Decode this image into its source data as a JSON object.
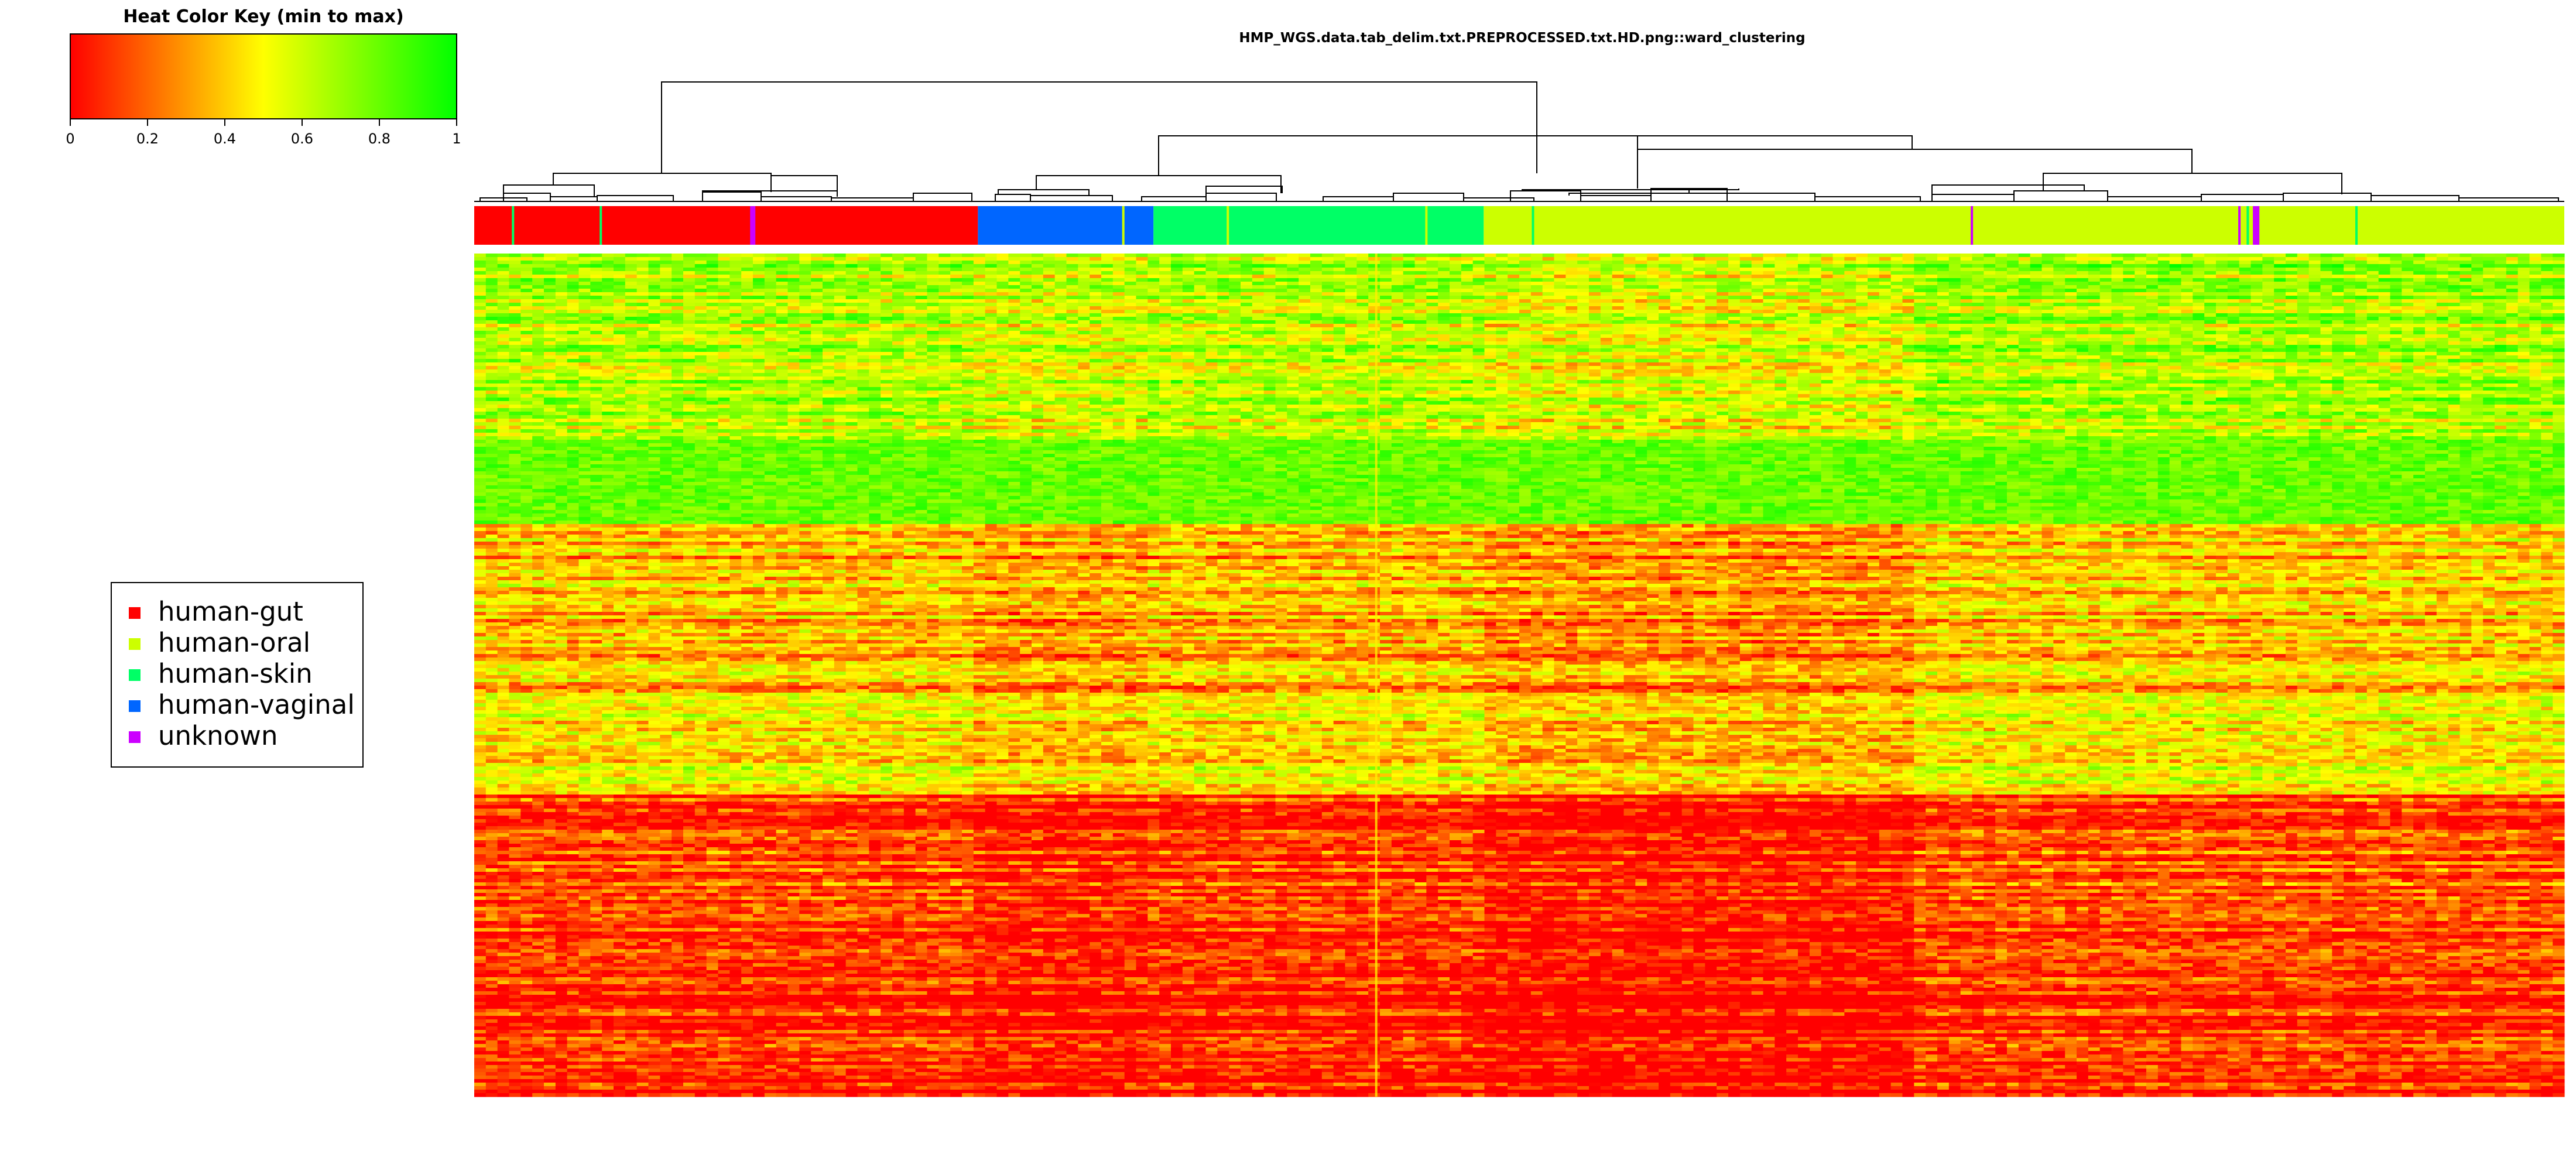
{
  "chart_data": {
    "type": "heatmap",
    "title": "HMP_WGS.data.tab_delim.txt.PREPROCESSED.txt.HD.png::ward_clustering",
    "color_key": {
      "title": "Heat Color Key (min to max)",
      "ticks": [
        "0",
        "0.2",
        "0.4",
        "0.6",
        "0.8",
        "1"
      ],
      "tick_values": [
        0,
        0.2,
        0.4,
        0.6,
        0.8,
        1
      ],
      "range": [
        0,
        1
      ],
      "colors": [
        "#ff0000",
        "#ffff00",
        "#00ff00"
      ]
    },
    "legend": {
      "placement": "left",
      "entries": [
        {
          "label": "human-gut",
          "color": "#ff0000"
        },
        {
          "label": "human-oral",
          "color": "#ccff00"
        },
        {
          "label": "human-skin",
          "color": "#00ff66"
        },
        {
          "label": "human-vaginal",
          "color": "#0066ff"
        },
        {
          "label": "unknown",
          "color": "#cc00ff"
        }
      ]
    },
    "column_groups": [
      {
        "group": "human-gut",
        "fraction": 0.241
      },
      {
        "group": "human-vaginal",
        "fraction": 0.084
      },
      {
        "group": "human-skin",
        "fraction": 0.158
      },
      {
        "group": "human-oral",
        "fraction": 0.517
      }
    ],
    "dendrogram": "ward_clustering, column clusters",
    "value_range": [
      0,
      1
    ]
  }
}
